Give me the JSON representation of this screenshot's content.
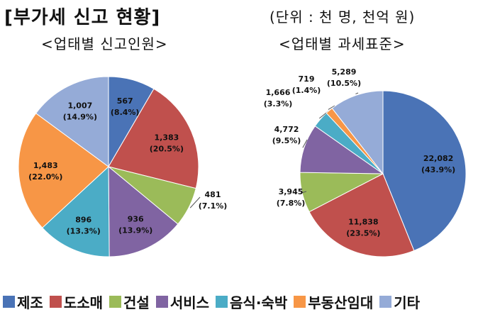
{
  "header": {
    "title": "[부가세 신고 현황]",
    "unit": "(단위 : 천 명, 천억 원)"
  },
  "legend": [
    {
      "name": "제조",
      "color": "#4a73b6"
    },
    {
      "name": "도소매",
      "color": "#c0504d"
    },
    {
      "name": "건설",
      "color": "#9bbb59"
    },
    {
      "name": "서비스",
      "color": "#8064a2"
    },
    {
      "name": "음식·숙박",
      "color": "#4bacc6"
    },
    {
      "name": "부동산임대",
      "color": "#f79646"
    },
    {
      "name": "기타",
      "color": "#95abd7"
    }
  ],
  "chart_data": [
    {
      "type": "pie",
      "title": "<업태별 신고인원>",
      "categories": [
        "제조",
        "도소매",
        "건설",
        "서비스",
        "음식·숙박",
        "부동산임대",
        "기타"
      ],
      "values": [
        567,
        1383,
        481,
        936,
        896,
        1483,
        1007
      ],
      "value_labels": [
        "567",
        "1,383",
        "481",
        "936",
        "896",
        "1,483",
        "1,007"
      ],
      "percent_labels": [
        "(8.4%)",
        "(20.5%)",
        "(7.1%)",
        "(13.9%)",
        "(13.3%)",
        "(22.0%)",
        "(14.9%)"
      ]
    },
    {
      "type": "pie",
      "title": "<업태별 과세표준>",
      "categories": [
        "제조",
        "도소매",
        "건설",
        "서비스",
        "음식·숙박",
        "부동산임대",
        "기타"
      ],
      "values": [
        22082,
        11838,
        3945,
        4772,
        1666,
        719,
        5289
      ],
      "value_labels": [
        "22,082",
        "11,838",
        "3,945",
        "4,772",
        "1,666",
        "719",
        "5,289"
      ],
      "percent_labels": [
        "(43.9%)",
        "(23.5%)",
        "(7.8%)",
        "(9.5%)",
        "(3.3%)",
        "(1.4%)",
        "(10.5%)"
      ]
    }
  ]
}
